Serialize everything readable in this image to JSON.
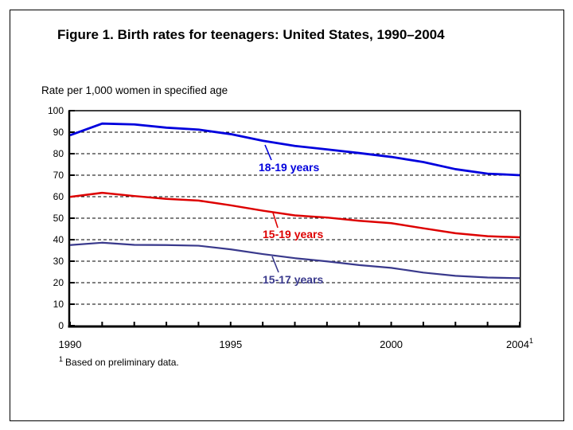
{
  "figure": {
    "title": "Figure 1. Birth rates for teenagers: United States, 1990–2004",
    "axis_caption": "Rate per 1,000 women in specified age",
    "footnote": {
      "sup": "1",
      "text": "Based on preliminary data."
    }
  },
  "chart_data": {
    "type": "line",
    "title": "Figure 1. Birth rates for teenagers: United States, 1990–2004",
    "xlabel": "",
    "ylabel": "Rate per 1,000 women in specified age",
    "x": [
      1990,
      1991,
      1992,
      1993,
      1994,
      1995,
      1996,
      1997,
      1998,
      1999,
      2000,
      2001,
      2002,
      2003,
      2004
    ],
    "series": [
      {
        "name": "18-19 years",
        "color": "#0000dd",
        "stroke_width": 2.8,
        "values": [
          88.6,
          94.0,
          93.6,
          92.1,
          91.2,
          89.1,
          86.0,
          83.6,
          82.0,
          80.3,
          78.5,
          76.1,
          72.8,
          70.7,
          70.0
        ]
      },
      {
        "name": "15-19 years",
        "color": "#dd0000",
        "stroke_width": 2.5,
        "values": [
          59.9,
          61.8,
          60.3,
          59.0,
          58.2,
          56.0,
          53.5,
          51.3,
          50.3,
          48.8,
          47.7,
          45.3,
          43.0,
          41.6,
          41.1
        ]
      },
      {
        "name": "15-17 years",
        "color": "#39398c",
        "stroke_width": 2.2,
        "values": [
          37.5,
          38.6,
          37.6,
          37.5,
          37.2,
          35.5,
          33.3,
          31.4,
          29.9,
          28.2,
          26.9,
          24.7,
          23.2,
          22.4,
          22.1
        ]
      }
    ],
    "ylim": [
      0,
      100
    ],
    "yticks": [
      0,
      10,
      20,
      30,
      40,
      50,
      60,
      70,
      80,
      90,
      100
    ],
    "xtick_labels": [
      {
        "label": "1990",
        "year": 1990
      },
      {
        "label": "1995",
        "year": 1995
      },
      {
        "label": "2000",
        "year": 2000
      },
      {
        "label": "2004",
        "year": 2004,
        "sup": "1"
      }
    ],
    "grid": "horizontal dashed lines at 10–90",
    "legend": "inline colored labels next to each line",
    "axis_color": "#000000",
    "footnote": "1 Based on preliminary data."
  }
}
